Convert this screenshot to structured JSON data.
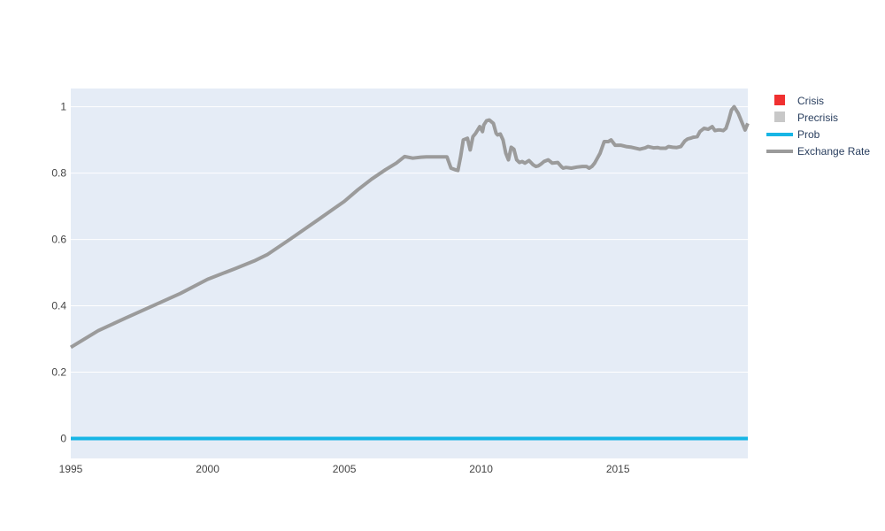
{
  "chart_data": {
    "type": "line",
    "title": "",
    "xlabel": "",
    "ylabel": "",
    "xlim": [
      1995.0,
      2019.75
    ],
    "ylim": [
      -0.06,
      1.055
    ],
    "x_ticks": [
      1995,
      2000,
      2005,
      2010,
      2015
    ],
    "y_ticks": [
      0,
      0.2,
      0.4,
      0.6,
      0.8,
      1
    ],
    "y_tick_labels": [
      "0",
      "0.2",
      "0.4",
      "0.6",
      "0.8",
      "1"
    ],
    "grid": true,
    "legend_position": "right",
    "colors": {
      "plot_bg": "#e5ecf6",
      "grid": "#ffffff",
      "crisis": "#f03030",
      "precrisis": "#c8c8c8",
      "prob": "#17b5e5",
      "exchange_rate": "#9b9b9b"
    },
    "legend": [
      {
        "name": "Crisis",
        "symbol": "square",
        "color": "#f03030"
      },
      {
        "name": "Precrisis",
        "symbol": "square",
        "color": "#c8c8c8"
      },
      {
        "name": "Prob",
        "symbol": "line",
        "color": "#17b5e5"
      },
      {
        "name": "Exchange Rate",
        "symbol": "line",
        "color": "#9b9b9b"
      }
    ],
    "series": [
      {
        "name": "Prob",
        "x": [
          1995.0,
          2019.75
        ],
        "y": [
          0,
          0
        ]
      },
      {
        "name": "Exchange Rate",
        "x": [
          1995.0,
          1996.0,
          1997.0,
          1998.0,
          1999.0,
          2000.0,
          2001.0,
          2001.7,
          2002.2,
          2003.0,
          2004.0,
          2005.0,
          2005.5,
          2006.0,
          2006.5,
          2006.9,
          2007.2,
          2007.5,
          2007.8,
          2008.0,
          2008.15,
          2008.3,
          2008.45,
          2008.6,
          2008.75,
          2008.9,
          2009.05,
          2009.15,
          2009.25,
          2009.35,
          2009.5,
          2009.6,
          2009.7,
          2009.8,
          2009.95,
          2010.05,
          2010.1,
          2010.2,
          2010.3,
          2010.45,
          2010.55,
          2010.6,
          2010.7,
          2010.8,
          2010.9,
          2011.0,
          2011.1,
          2011.2,
          2011.3,
          2011.4,
          2011.5,
          2011.6,
          2011.75,
          2011.9,
          2012.0,
          2012.1,
          2012.2,
          2012.3,
          2012.45,
          2012.6,
          2012.8,
          2012.95,
          2013.0,
          2013.1,
          2013.3,
          2013.5,
          2013.7,
          2013.85,
          2013.95,
          2014.05,
          2014.15,
          2014.25,
          2014.35,
          2014.5,
          2014.65,
          2014.75,
          2014.9,
          2015.1,
          2015.3,
          2015.5,
          2015.8,
          2016.0,
          2016.1,
          2016.3,
          2016.45,
          2016.55,
          2016.75,
          2016.85,
          2017.0,
          2017.15,
          2017.3,
          2017.45,
          2017.55,
          2017.65,
          2017.75,
          2017.9,
          2018.0,
          2018.15,
          2018.3,
          2018.45,
          2018.55,
          2018.65,
          2018.75,
          2018.85,
          2018.95,
          2019.05,
          2019.15,
          2019.25,
          2019.4,
          2019.55,
          2019.65,
          2019.75
        ],
        "y": [
          0.275,
          0.325,
          0.363,
          0.4,
          0.437,
          0.48,
          0.512,
          0.535,
          0.555,
          0.6,
          0.657,
          0.715,
          0.75,
          0.782,
          0.81,
          0.83,
          0.85,
          0.845,
          0.848,
          0.849,
          0.849,
          0.849,
          0.849,
          0.849,
          0.849,
          0.815,
          0.81,
          0.808,
          0.85,
          0.9,
          0.905,
          0.87,
          0.91,
          0.92,
          0.94,
          0.925,
          0.945,
          0.958,
          0.96,
          0.95,
          0.92,
          0.915,
          0.918,
          0.9,
          0.86,
          0.84,
          0.878,
          0.872,
          0.84,
          0.832,
          0.835,
          0.83,
          0.838,
          0.825,
          0.82,
          0.822,
          0.828,
          0.835,
          0.84,
          0.83,
          0.832,
          0.818,
          0.815,
          0.817,
          0.815,
          0.818,
          0.82,
          0.82,
          0.815,
          0.82,
          0.83,
          0.845,
          0.86,
          0.895,
          0.895,
          0.9,
          0.884,
          0.884,
          0.88,
          0.878,
          0.872,
          0.876,
          0.88,
          0.876,
          0.877,
          0.875,
          0.875,
          0.88,
          0.878,
          0.877,
          0.88,
          0.897,
          0.903,
          0.905,
          0.908,
          0.91,
          0.925,
          0.935,
          0.932,
          0.94,
          0.928,
          0.93,
          0.93,
          0.928,
          0.935,
          0.96,
          0.99,
          1.0,
          0.98,
          0.95,
          0.93,
          0.95
        ]
      }
    ]
  }
}
